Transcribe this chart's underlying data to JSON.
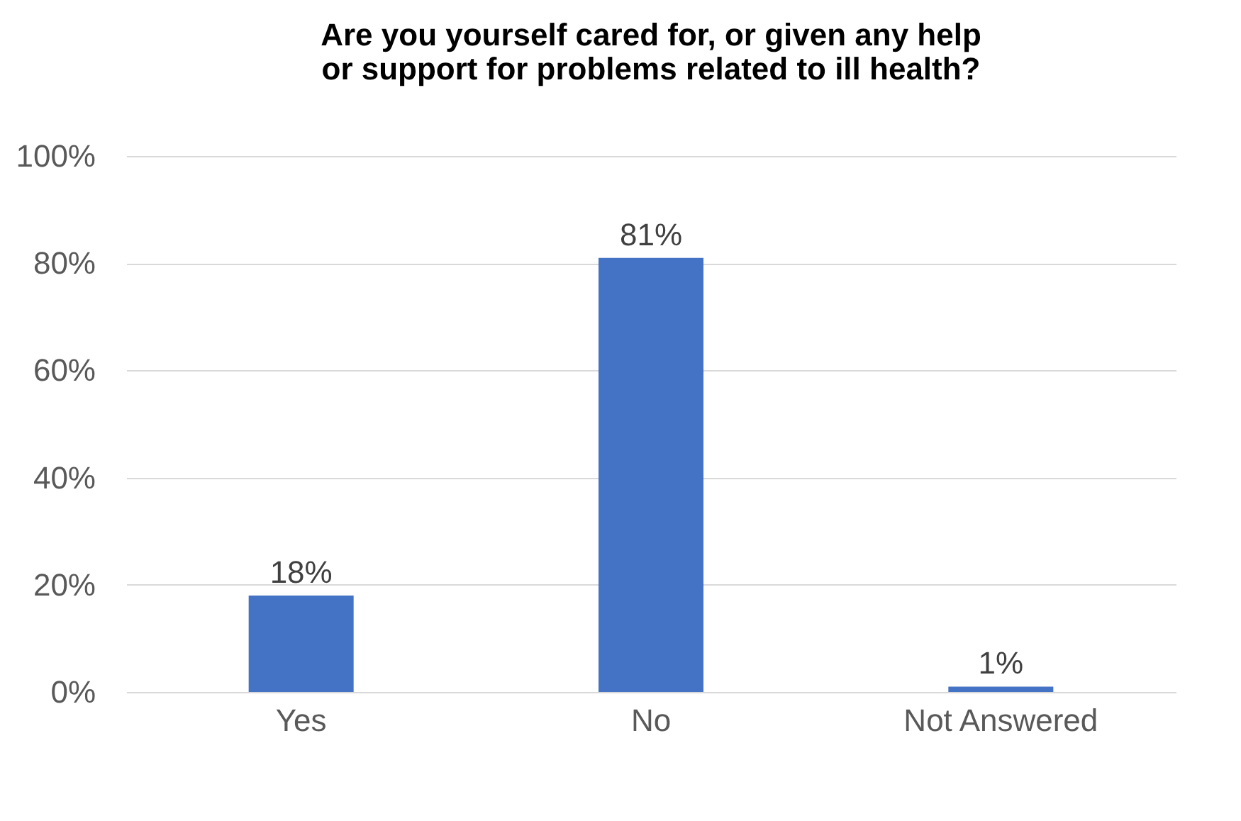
{
  "chart_data": {
    "type": "bar",
    "title": "Are you yourself cared for, or given any help\nor support for problems related to ill health?",
    "categories": [
      "Yes",
      "No",
      "Not Answered"
    ],
    "values": [
      18,
      81,
      1
    ],
    "value_labels": [
      "18%",
      "81%",
      "1%"
    ],
    "color": "#4472c4",
    "ylim": [
      0,
      100
    ],
    "yticks": [
      {
        "value": 0,
        "label": "0%"
      },
      {
        "value": 20,
        "label": "20%"
      },
      {
        "value": 40,
        "label": "40%"
      },
      {
        "value": 60,
        "label": "60%"
      },
      {
        "value": 80,
        "label": "80%"
      },
      {
        "value": 100,
        "label": "100%"
      }
    ],
    "grid": "y"
  }
}
